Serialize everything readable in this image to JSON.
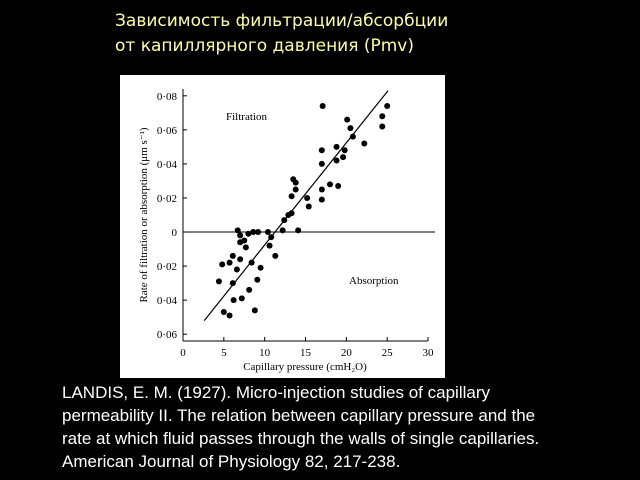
{
  "chart_data": {
    "type": "scatter",
    "title_lines": [
      "Зависимость фильтрации/абсорбции",
      "от капиллярного давления (Pmv)"
    ],
    "x_label": "Capillary pressure (cmH₂O)",
    "y_label": "Rate of filtration or absorption (μm s⁻¹)",
    "annotations": [
      "Filtration",
      "Absorption"
    ],
    "xlim": [
      0,
      30
    ],
    "xticks": [
      0,
      5,
      10,
      15,
      20,
      25,
      30
    ],
    "ylim": [
      -0.064,
      0.084
    ],
    "yticks": [
      {
        "value": 0.08,
        "label": "0·08"
      },
      {
        "value": 0.06,
        "label": "0·06"
      },
      {
        "value": 0.04,
        "label": "0·04"
      },
      {
        "value": 0.02,
        "label": "0·02"
      },
      0,
      {
        "value": -0.02,
        "label": "0·02"
      },
      {
        "value": -0.04,
        "label": "0·04"
      },
      {
        "value": -0.06,
        "label": "0·06"
      }
    ],
    "color": "#000000",
    "x": [
      17.1,
      25,
      24.4,
      20.1,
      24.4,
      20.5,
      20.8,
      18.8,
      19.8,
      22.2,
      17.0,
      17.0,
      18.8,
      19.6,
      13.5,
      13.8,
      13.8,
      13.3,
      15.2,
      15.4,
      17.0,
      18.0,
      19.0,
      17.0,
      13.3,
      12.9,
      12.4,
      10.4,
      10.8,
      12.2,
      14.1,
      6.7,
      7.0,
      7.5,
      8.0,
      8.6,
      9.2,
      7.0,
      7.7,
      6.1,
      7.0,
      5.7,
      4.8,
      6.6,
      8.4,
      9.5,
      11.3,
      10.6,
      6.1,
      4.4,
      9.1,
      8.1,
      6.2,
      7.2,
      5.0,
      5.7,
      8.8
    ],
    "values": [
      0.074,
      0.074,
      0.068,
      0.066,
      0.062,
      0.061,
      0.056,
      0.05,
      0.048,
      0.052,
      0.048,
      0.04,
      0.042,
      0.044,
      0.031,
      0.029,
      0.025,
      0.021,
      0.02,
      0.015,
      0.025,
      0.028,
      0.027,
      0.019,
      0.011,
      0.01,
      0.007,
      0.0,
      -0.003,
      0.001,
      0.001,
      0.001,
      -0.002,
      -0.005,
      -0.001,
      0.0,
      0.0,
      -0.006,
      -0.009,
      -0.014,
      -0.016,
      -0.018,
      -0.019,
      -0.022,
      -0.018,
      -0.021,
      -0.014,
      -0.008,
      -0.03,
      -0.029,
      -0.028,
      -0.034,
      -0.04,
      -0.039,
      -0.047,
      -0.049,
      -0.046
    ],
    "trend_line": {
      "x": [
        2.6,
        25.1
      ],
      "values": [
        -0.052,
        0.083
      ]
    },
    "citation": [
      "LANDIS, E. M. (1927). Micro-injection studies of capillary",
      "permeability II. The relation between capillary pressure and the",
      "rate at which fluid passes through the walls of single capillaries.",
      "American Journal of Physiology 82, 217-238."
    ]
  }
}
